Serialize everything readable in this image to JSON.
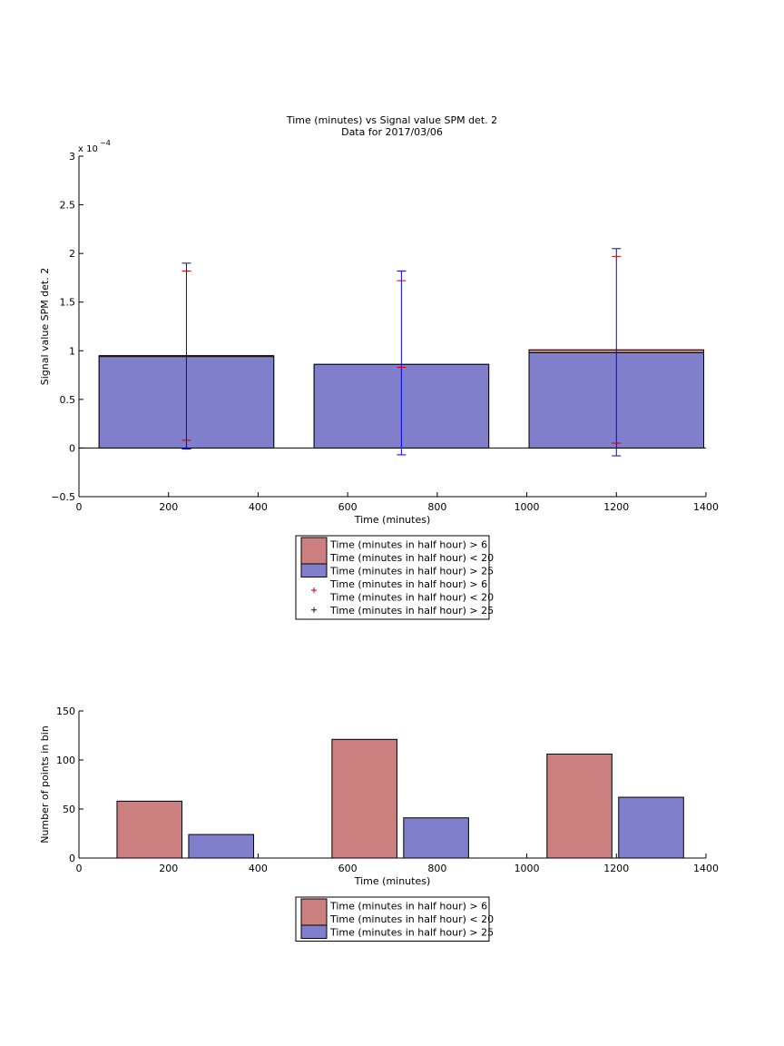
{
  "colors": {
    "red_fill": "#cc7f7f",
    "blue_fill": "#7f7fcc",
    "error_line": "#0000ff",
    "red_marker": "#cc0000",
    "blue_marker": "#000099"
  },
  "chart_data": [
    {
      "type": "bar",
      "title": "Time (minutes) vs Signal value SPM det. 2",
      "subtitle": "Data for 2017/03/06",
      "xlabel": "Time (minutes)",
      "ylabel": "Signal value SPM det. 2",
      "exponent_label": "x 10",
      "exponent_power": "−4",
      "xlim": [
        0,
        1400
      ],
      "ylim": [
        -0.5,
        3
      ],
      "y_scale_factor": "1e-4",
      "xticks": [
        "0",
        "200",
        "400",
        "600",
        "800",
        "1000",
        "1200",
        "1400"
      ],
      "yticks": [
        "−0.5",
        "0",
        "0.5",
        "1",
        "1.5",
        "2",
        "2.5",
        "3"
      ],
      "grid": false,
      "legend_position": "below",
      "bars": [
        {
          "x_start": 45,
          "x_end": 435,
          "red": 0.95,
          "blue": 0.94
        },
        {
          "x_start": 525,
          "x_end": 915,
          "red": 0.86,
          "blue": 0.86
        },
        {
          "x_start": 1005,
          "x_end": 1395,
          "red": 1.01,
          "blue": 0.98
        }
      ],
      "error_bars": [
        {
          "x": 240,
          "low": -0.01,
          "high": 1.9,
          "red_low": 0.08,
          "red_high": 1.82
        },
        {
          "x": 720,
          "low": -0.07,
          "high": 1.82,
          "red_low": 0.83,
          "red_high": 1.72
        },
        {
          "x": 1200,
          "low": -0.08,
          "high": 2.05,
          "red_low": 0.05,
          "red_high": 1.97
        }
      ],
      "legend": [
        {
          "kind": "patch",
          "color": "red",
          "lines": [
            "Time (minutes in half hour) > 6",
            "Time (minutes in half hour) < 20"
          ]
        },
        {
          "kind": "patch",
          "color": "blue",
          "lines": [
            "Time (minutes in half hour) > 25"
          ]
        },
        {
          "kind": "marker",
          "color": "red",
          "lines": [
            "Time (minutes in half hour) > 6",
            "Time (minutes in half hour) < 20"
          ]
        },
        {
          "kind": "marker",
          "color": "blue",
          "lines": [
            "Time (minutes in half hour) > 25"
          ]
        }
      ]
    },
    {
      "type": "bar",
      "xlabel": "Time (minutes)",
      "ylabel": "Number of points in bin",
      "xlim": [
        0,
        1400
      ],
      "ylim": [
        0,
        150
      ],
      "xticks": [
        "0",
        "200",
        "400",
        "600",
        "800",
        "1000",
        "1200",
        "1400"
      ],
      "yticks": [
        "0",
        "50",
        "100",
        "150"
      ],
      "grid": false,
      "legend_position": "below",
      "series": [
        {
          "color": "red",
          "bars": [
            {
              "x_start": 85,
              "x_end": 230,
              "value": 58
            },
            {
              "x_start": 565,
              "x_end": 710,
              "value": 121
            },
            {
              "x_start": 1045,
              "x_end": 1190,
              "value": 106
            }
          ]
        },
        {
          "color": "blue",
          "bars": [
            {
              "x_start": 245,
              "x_end": 390,
              "value": 24
            },
            {
              "x_start": 725,
              "x_end": 870,
              "value": 41
            },
            {
              "x_start": 1205,
              "x_end": 1350,
              "value": 62
            }
          ]
        }
      ],
      "legend": [
        {
          "kind": "patch",
          "color": "red",
          "lines": [
            "Time (minutes in half hour) > 6",
            "Time (minutes in half hour) < 20"
          ]
        },
        {
          "kind": "patch",
          "color": "blue",
          "lines": [
            "Time (minutes in half hour) > 25"
          ]
        }
      ]
    }
  ]
}
